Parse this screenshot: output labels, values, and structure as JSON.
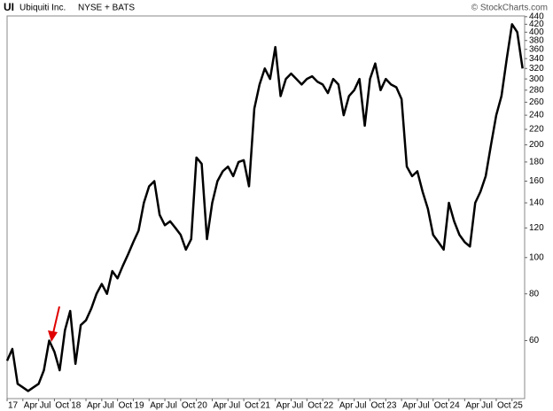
{
  "chart_data": {
    "type": "line",
    "ticker": "UI",
    "name": "Ubiquiti Inc.",
    "exchange": "NYSE + BATS",
    "source": "© StockCharts.com",
    "log_scale": true,
    "grid": false,
    "color": "#000000",
    "xlim": [
      2017,
      2025.2
    ],
    "ylim": [
      42,
      442
    ],
    "yticks": [
      60,
      80,
      100,
      120,
      140,
      160,
      180,
      200,
      220,
      240,
      260,
      280,
      300,
      320,
      340,
      360,
      380,
      400,
      420,
      440
    ],
    "xticks": [
      {
        "value": 2017,
        "label": "17"
      },
      {
        "value": 2017.25,
        "label": "Apr"
      },
      {
        "value": 2017.5,
        "label": "Jul"
      },
      {
        "value": 2017.75,
        "label": "Oct"
      },
      {
        "value": 2018,
        "label": "18"
      },
      {
        "value": 2018.25,
        "label": "Apr"
      },
      {
        "value": 2018.5,
        "label": "Jul"
      },
      {
        "value": 2018.75,
        "label": "Oct"
      },
      {
        "value": 2019,
        "label": "19"
      },
      {
        "value": 2019.25,
        "label": "Apr"
      },
      {
        "value": 2019.5,
        "label": "Jul"
      },
      {
        "value": 2019.75,
        "label": "Oct"
      },
      {
        "value": 2020,
        "label": "20"
      },
      {
        "value": 2020.25,
        "label": "Apr"
      },
      {
        "value": 2020.5,
        "label": "Jul"
      },
      {
        "value": 2020.75,
        "label": "Oct"
      },
      {
        "value": 2021,
        "label": "21"
      },
      {
        "value": 2021.25,
        "label": "Apr"
      },
      {
        "value": 2021.5,
        "label": "Jul"
      },
      {
        "value": 2021.75,
        "label": "Oct"
      },
      {
        "value": 2022,
        "label": "22"
      },
      {
        "value": 2022.25,
        "label": "Apr"
      },
      {
        "value": 2022.5,
        "label": "Jul"
      },
      {
        "value": 2022.75,
        "label": "Oct"
      },
      {
        "value": 2023,
        "label": "23"
      },
      {
        "value": 2023.25,
        "label": "Apr"
      },
      {
        "value": 2023.5,
        "label": "Jul"
      },
      {
        "value": 2023.75,
        "label": "Oct"
      },
      {
        "value": 2024,
        "label": "24"
      },
      {
        "value": 2024.25,
        "label": "Apr"
      },
      {
        "value": 2024.5,
        "label": "Jul"
      },
      {
        "value": 2024.75,
        "label": "Oct"
      },
      {
        "value": 2025,
        "label": "25"
      }
    ],
    "x": [
      2017,
      2017.083,
      2017.167,
      2017.25,
      2017.333,
      2017.417,
      2017.5,
      2017.583,
      2017.667,
      2017.75,
      2017.833,
      2017.917,
      2018,
      2018.083,
      2018.167,
      2018.25,
      2018.333,
      2018.417,
      2018.5,
      2018.583,
      2018.667,
      2018.75,
      2018.833,
      2018.917,
      2019,
      2019.083,
      2019.167,
      2019.25,
      2019.333,
      2019.417,
      2019.5,
      2019.583,
      2019.667,
      2019.75,
      2019.833,
      2019.917,
      2020,
      2020.083,
      2020.167,
      2020.25,
      2020.333,
      2020.417,
      2020.5,
      2020.583,
      2020.667,
      2020.75,
      2020.833,
      2020.917,
      2021,
      2021.083,
      2021.167,
      2021.25,
      2021.333,
      2021.417,
      2021.5,
      2021.583,
      2021.667,
      2021.75,
      2021.833,
      2021.917,
      2022,
      2022.083,
      2022.167,
      2022.25,
      2022.333,
      2022.417,
      2022.5,
      2022.583,
      2022.667,
      2022.75,
      2022.833,
      2022.917,
      2023,
      2023.083,
      2023.167,
      2023.25,
      2023.333,
      2023.417,
      2023.5,
      2023.583,
      2023.667,
      2023.75,
      2023.833,
      2023.917,
      2024,
      2024.083,
      2024.167,
      2024.25,
      2024.333,
      2024.417,
      2024.5,
      2024.583,
      2024.667,
      2024.75,
      2024.833,
      2024.917,
      2025,
      2025.083,
      2025.167
    ],
    "values": [
      53,
      57,
      46,
      45,
      44,
      45,
      46,
      50,
      60,
      56,
      50,
      64,
      72,
      52,
      66,
      68,
      73,
      80,
      85,
      80,
      92,
      88,
      95,
      102,
      110,
      118,
      140,
      155,
      160,
      130,
      122,
      125,
      120,
      115,
      105,
      112,
      185,
      178,
      112,
      140,
      160,
      170,
      175,
      165,
      180,
      182,
      155,
      250,
      290,
      320,
      300,
      365,
      270,
      300,
      310,
      300,
      290,
      300,
      305,
      295,
      290,
      275,
      300,
      290,
      240,
      270,
      280,
      300,
      225,
      300,
      330,
      280,
      300,
      290,
      285,
      265,
      175,
      165,
      170,
      150,
      135,
      115,
      110,
      105,
      140,
      125,
      115,
      110,
      107,
      140,
      150,
      165,
      200,
      240,
      270,
      340,
      420,
      400,
      320
    ]
  }
}
